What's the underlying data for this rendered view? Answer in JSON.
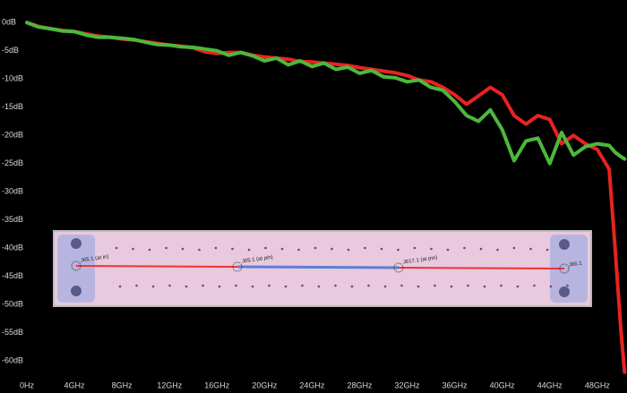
{
  "chart_data": {
    "type": "line",
    "xlim": [
      0,
      50.5
    ],
    "ylim": [
      -63,
      4
    ],
    "xticks": [
      {
        "value": 0,
        "label": "0Hz"
      },
      {
        "value": 4,
        "label": "4GHz"
      },
      {
        "value": 8,
        "label": "8GHz"
      },
      {
        "value": 12,
        "label": "12GHz"
      },
      {
        "value": 16,
        "label": "16GHz"
      },
      {
        "value": 20,
        "label": "20GHz"
      },
      {
        "value": 24,
        "label": "24GHz"
      },
      {
        "value": 28,
        "label": "28GHz"
      },
      {
        "value": 32,
        "label": "32GHz"
      },
      {
        "value": 36,
        "label": "36GHz"
      },
      {
        "value": 40,
        "label": "40GHz"
      },
      {
        "value": 44,
        "label": "44GHz"
      },
      {
        "value": 48,
        "label": "48GHz"
      }
    ],
    "minor_xticks": [
      2,
      6,
      10,
      14,
      18,
      22,
      26,
      30,
      34,
      38,
      42,
      46,
      50
    ],
    "yticks": [
      {
        "value": 0,
        "label": "0dB"
      },
      {
        "value": -5,
        "label": "-5dB"
      },
      {
        "value": -10,
        "label": "-10dB"
      },
      {
        "value": -15,
        "label": "-15dB"
      },
      {
        "value": -20,
        "label": "-20dB"
      },
      {
        "value": -25,
        "label": "-25dB"
      },
      {
        "value": -30,
        "label": "-30dB"
      },
      {
        "value": -35,
        "label": "-35dB"
      },
      {
        "value": -40,
        "label": "-40dB"
      },
      {
        "value": -45,
        "label": "-45dB"
      },
      {
        "value": -50,
        "label": "-50dB"
      },
      {
        "value": -55,
        "label": "-55dB"
      },
      {
        "value": -60,
        "label": "-60dB"
      }
    ],
    "grid": true,
    "x": [
      0,
      1,
      2,
      3,
      4,
      5,
      6,
      7,
      8,
      9,
      10,
      11,
      12,
      13,
      14,
      15,
      16,
      17,
      18,
      19,
      20,
      21,
      22,
      23,
      24,
      25,
      26,
      27,
      28,
      29,
      30,
      31,
      32,
      33,
      34,
      35,
      36,
      37,
      38,
      39,
      40,
      41,
      42,
      43,
      44,
      45,
      46,
      47,
      48,
      49,
      49.5,
      50,
      50.3
    ],
    "series": [
      {
        "color": "#e8231f",
        "values": [
          0,
          -0.7,
          -1.1,
          -1.4,
          -1.6,
          -2,
          -2.4,
          -2.6,
          -2.9,
          -3.1,
          -3.4,
          -3.7,
          -4,
          -4.2,
          -4.5,
          -5.2,
          -5.5,
          -5.3,
          -5.3,
          -5.8,
          -6.1,
          -6.3,
          -6.5,
          -6.9,
          -7,
          -7.2,
          -7.4,
          -7.6,
          -8,
          -8.3,
          -8.6,
          -8.9,
          -9.4,
          -10.2,
          -10.5,
          -11.5,
          -12.8,
          -14.5,
          -13,
          -11.5,
          -12.8,
          -16.5,
          -18,
          -16.5,
          -17.2,
          -21.5,
          -20,
          -21.5,
          -22.5,
          -26,
          -40,
          -55,
          -62
        ]
      },
      {
        "color": "#4db83c",
        "values": [
          0,
          -0.8,
          -1.1,
          -1.5,
          -1.6,
          -2.2,
          -2.6,
          -2.6,
          -2.8,
          -3,
          -3.5,
          -3.9,
          -4,
          -4.3,
          -4.4,
          -4.7,
          -5,
          -5.8,
          -5.3,
          -5.9,
          -6.8,
          -6.3,
          -7.5,
          -6.8,
          -7.8,
          -7.2,
          -8.3,
          -7.9,
          -9,
          -8.5,
          -9.6,
          -9.8,
          -10.5,
          -10.2,
          -11.5,
          -12,
          -14,
          -16.5,
          -17.5,
          -15.5,
          -19,
          -24.5,
          -21,
          -20.5,
          -25,
          -19.5,
          -23.5,
          -22,
          -21.5,
          -21.8,
          -23,
          -23.8,
          -24.2
        ]
      }
    ]
  },
  "inset": {
    "labels": [
      "J65.1 (at in)",
      "J65.1 (at pin)",
      "J617.1 (at pin)",
      "J66.1"
    ]
  }
}
